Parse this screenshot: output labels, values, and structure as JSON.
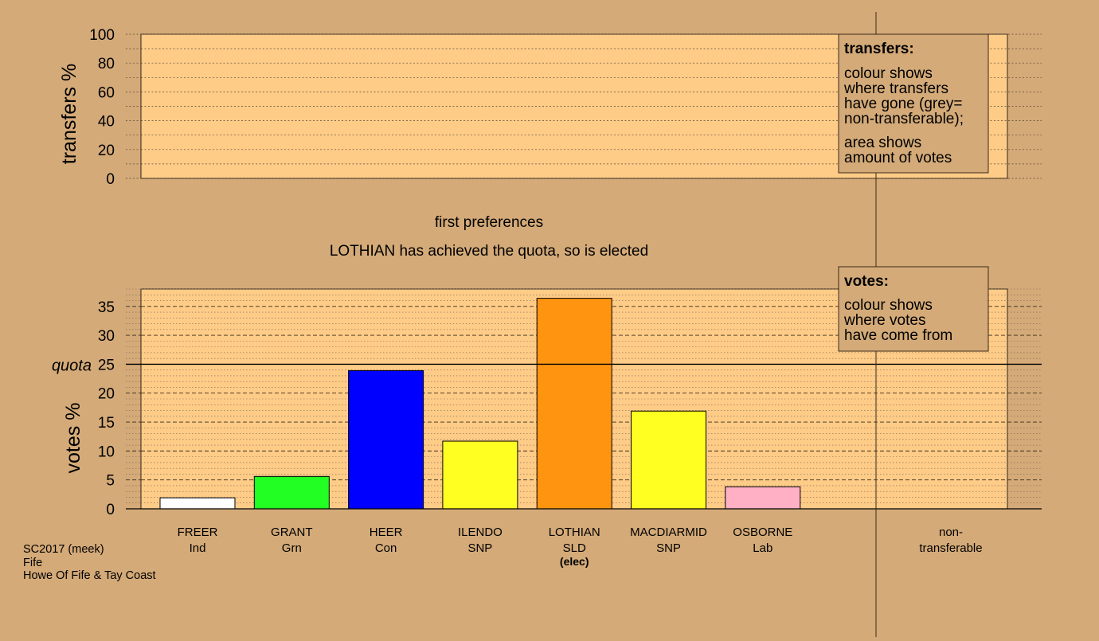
{
  "colors": {
    "background": "#d4aa78",
    "plot_fill": "#ffcc88",
    "legend_box": "#d4aa78"
  },
  "transfers_chart": {
    "ylabel": "transfers %",
    "yticks": [
      0,
      20,
      40,
      60,
      80,
      100
    ],
    "ylim": [
      0,
      100
    ]
  },
  "captions": {
    "stage": "first preferences",
    "status": "LOTHIAN has achieved the quota, so is elected"
  },
  "legend_transfers": {
    "title": "transfers:",
    "lines1": [
      "colour shows",
      "where transfers",
      "have gone (grey=",
      "non-transferable);"
    ],
    "lines2": [
      "area shows",
      "amount of votes"
    ]
  },
  "legend_votes": {
    "title": "votes:",
    "lines": [
      "colour shows",
      "where votes",
      "have come from"
    ]
  },
  "chart_data": {
    "type": "bar",
    "ylabel": "votes %",
    "ylim": [
      0,
      38
    ],
    "yticks": [
      0,
      5,
      10,
      15,
      20,
      25,
      30,
      35
    ],
    "quota": {
      "value": 25,
      "label": "quota"
    },
    "categories": [
      "FREER",
      "GRANT",
      "HEER",
      "ILENDO",
      "LOTHIAN",
      "MACDIARMID",
      "OSBORNE"
    ],
    "parties": [
      "Ind",
      "Grn",
      "Con",
      "SNP",
      "SLD",
      "SNP",
      "Lab"
    ],
    "notes": [
      "",
      "",
      "",
      "",
      "(elec)",
      "",
      ""
    ],
    "values": [
      1.9,
      5.6,
      23.9,
      11.7,
      36.4,
      16.9,
      3.8
    ],
    "colors": [
      "#ffffff",
      "#22ff22",
      "#0000ff",
      "#ffff22",
      "#ff9410",
      "#ffff22",
      "#ffb0c4"
    ],
    "extra_column": {
      "line1": "non-",
      "line2": "transferable",
      "value": 0
    }
  },
  "footer": {
    "line1": "SC2017 (meek)",
    "line2": "Fife",
    "line3": "Howe Of Fife & Tay Coast"
  }
}
